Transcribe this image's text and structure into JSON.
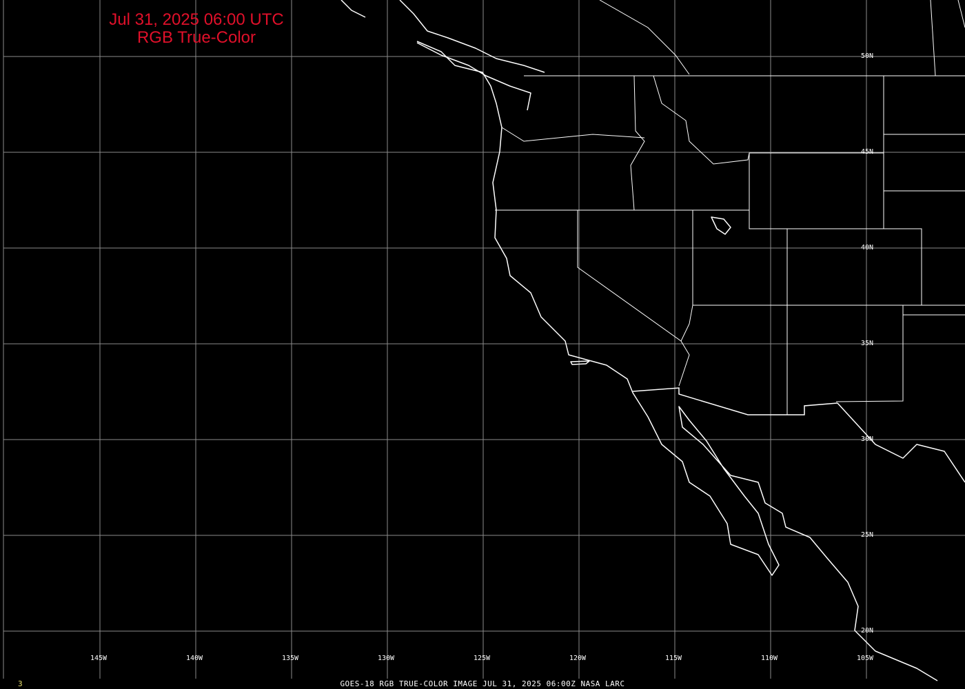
{
  "title": {
    "line1": "Jul 31, 2025 06:00 UTC",
    "line2": "RGB True-Color"
  },
  "footer": "GOES-18 RGB TRUE-COLOR IMAGE   JUL 31, 2025 06:00Z    NASA LARC",
  "frame_number": "3",
  "longitude_labels": [
    "145W",
    "140W",
    "135W",
    "130W",
    "125W",
    "120W",
    "115W",
    "110W",
    "105W"
  ],
  "latitude_labels": [
    "50N",
    "45N",
    "40N",
    "35N",
    "30N",
    "25N",
    "20N"
  ],
  "colors": {
    "background": "#000000",
    "title": "#e0102a",
    "grid": "#8c8c8c",
    "coastline": "#ffffff",
    "frame_number": "#e8e070"
  }
}
